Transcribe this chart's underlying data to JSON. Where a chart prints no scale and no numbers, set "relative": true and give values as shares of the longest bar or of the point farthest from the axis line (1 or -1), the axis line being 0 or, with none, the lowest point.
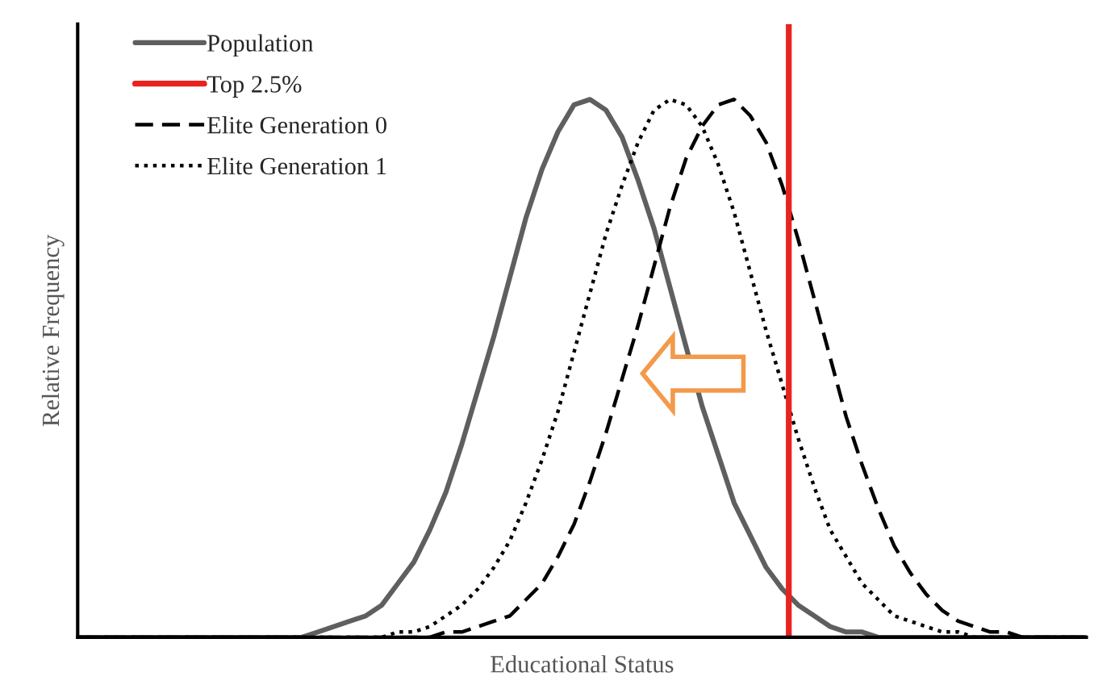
{
  "chart_data": {
    "type": "line",
    "relative": true,
    "xlabel": "Educational Status",
    "ylabel": "Relative Frequency",
    "categories": [
      null,
      null,
      null,
      null,
      null,
      null,
      null,
      null,
      null,
      null,
      null,
      null,
      null,
      null,
      null,
      null,
      null,
      null,
      null,
      null,
      null,
      null,
      null,
      null,
      null,
      null,
      null,
      null,
      null,
      null,
      null,
      null,
      null,
      null,
      null,
      null,
      null,
      null,
      null,
      null,
      null,
      null,
      null,
      null,
      null,
      null,
      null,
      null,
      null,
      null,
      null,
      null,
      null,
      null,
      null,
      null,
      null,
      null,
      null,
      null,
      null,
      null,
      null,
      null
    ],
    "series": [
      {
        "name": "Population",
        "color": "#5f5f5f",
        "line_style": "solid",
        "values": [
          0,
          0,
          0,
          0,
          0,
          0,
          0,
          0,
          0,
          0,
          0,
          0,
          0,
          0,
          0,
          0.01,
          0.02,
          0.03,
          0.04,
          0.06,
          0.1,
          0.14,
          0.2,
          0.27,
          0.36,
          0.46,
          0.56,
          0.67,
          0.78,
          0.87,
          0.94,
          0.99,
          1.0,
          0.98,
          0.93,
          0.85,
          0.76,
          0.65,
          0.54,
          0.43,
          0.34,
          0.25,
          0.19,
          0.13,
          0.09,
          0.06,
          0.04,
          0.02,
          0.01,
          0.01,
          0,
          0,
          0,
          0,
          0,
          0,
          0,
          0,
          0,
          0,
          0,
          0,
          0,
          0
        ]
      },
      {
        "name": "Elite Generation 0",
        "color": "#000000",
        "line_style": "dashed",
        "values": [
          0,
          0,
          0,
          0,
          0,
          0,
          0,
          0,
          0,
          0,
          0,
          0,
          0,
          0,
          0,
          0,
          0,
          0,
          0,
          0,
          0,
          0,
          0,
          0.01,
          0.01,
          0.02,
          0.03,
          0.04,
          0.07,
          0.1,
          0.15,
          0.21,
          0.29,
          0.38,
          0.48,
          0.58,
          0.69,
          0.8,
          0.89,
          0.95,
          0.99,
          1.0,
          0.97,
          0.92,
          0.84,
          0.74,
          0.63,
          0.52,
          0.41,
          0.32,
          0.24,
          0.17,
          0.12,
          0.08,
          0.05,
          0.03,
          0.02,
          0.01,
          0.01,
          0,
          0,
          0,
          0,
          0
        ]
      },
      {
        "name": "Elite Generation 1",
        "color": "#000000",
        "line_style": "dotted",
        "values": [
          0,
          0,
          0,
          0,
          0,
          0,
          0,
          0,
          0,
          0,
          0,
          0,
          0,
          0,
          0,
          0,
          0,
          0,
          0,
          0,
          0.01,
          0.01,
          0.02,
          0.04,
          0.06,
          0.09,
          0.13,
          0.18,
          0.25,
          0.33,
          0.42,
          0.53,
          0.64,
          0.75,
          0.84,
          0.92,
          0.98,
          1.0,
          0.99,
          0.95,
          0.88,
          0.79,
          0.68,
          0.57,
          0.47,
          0.37,
          0.28,
          0.2,
          0.15,
          0.1,
          0.07,
          0.04,
          0.03,
          0.02,
          0.01,
          0.01,
          0,
          0,
          0,
          0,
          0,
          0,
          0,
          0
        ]
      }
    ],
    "annotations": [
      "Top 2.5%"
    ],
    "legend": "top left"
  }
}
